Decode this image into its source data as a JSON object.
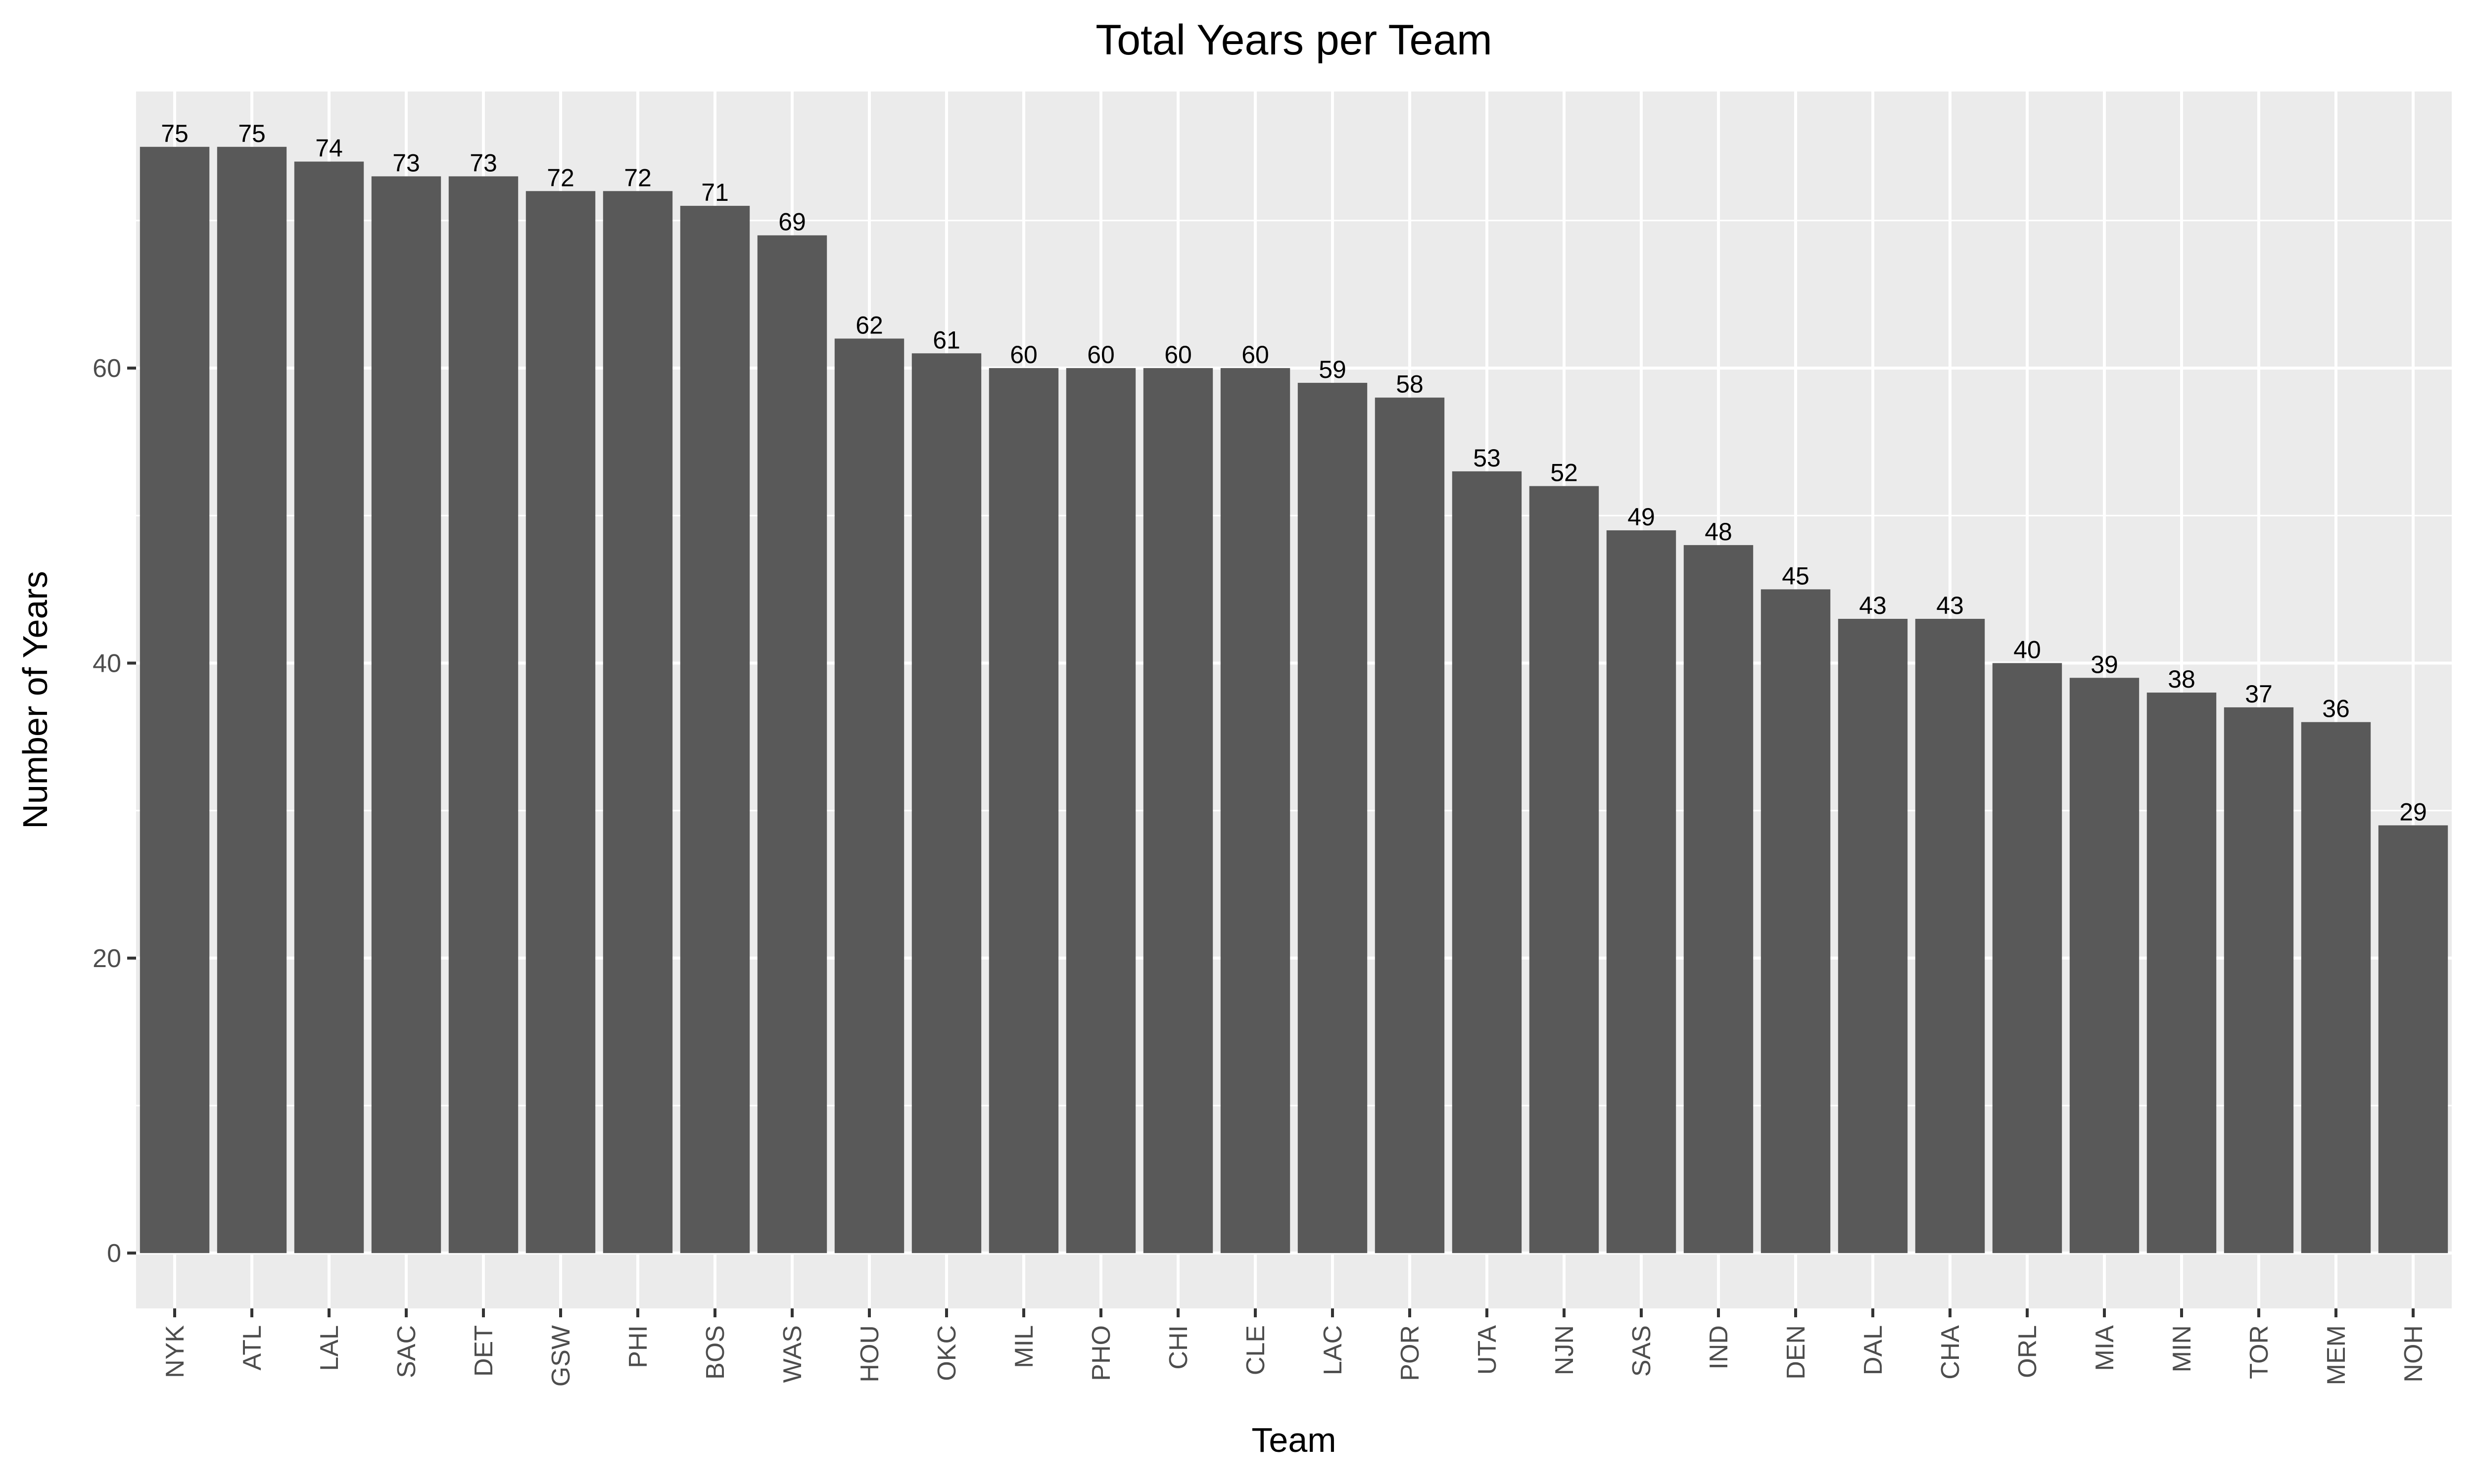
{
  "chart_data": {
    "type": "bar",
    "title": "Total Years per Team",
    "xlabel": "Team",
    "ylabel": "Number of Years",
    "categories": [
      "NYK",
      "ATL",
      "LAL",
      "SAC",
      "DET",
      "GSW",
      "PHI",
      "BOS",
      "WAS",
      "HOU",
      "OKC",
      "MIL",
      "PHO",
      "CHI",
      "CLE",
      "LAC",
      "POR",
      "UTA",
      "NJN",
      "SAS",
      "IND",
      "DEN",
      "DAL",
      "CHA",
      "ORL",
      "MIA",
      "MIN",
      "TOR",
      "MEM",
      "NOH"
    ],
    "values": [
      75,
      75,
      74,
      73,
      73,
      72,
      72,
      71,
      69,
      62,
      61,
      60,
      60,
      60,
      60,
      59,
      58,
      53,
      52,
      49,
      48,
      45,
      43,
      43,
      40,
      39,
      38,
      37,
      36,
      29
    ],
    "ylim": [
      -3.75,
      78.75
    ],
    "yticks": [
      0,
      20,
      40,
      60
    ],
    "grid": true,
    "data_labels": true,
    "legend": "none",
    "colors": {
      "bar": "#595959",
      "panel_background": "#ebebeb",
      "gridline": "#ffffff"
    }
  }
}
